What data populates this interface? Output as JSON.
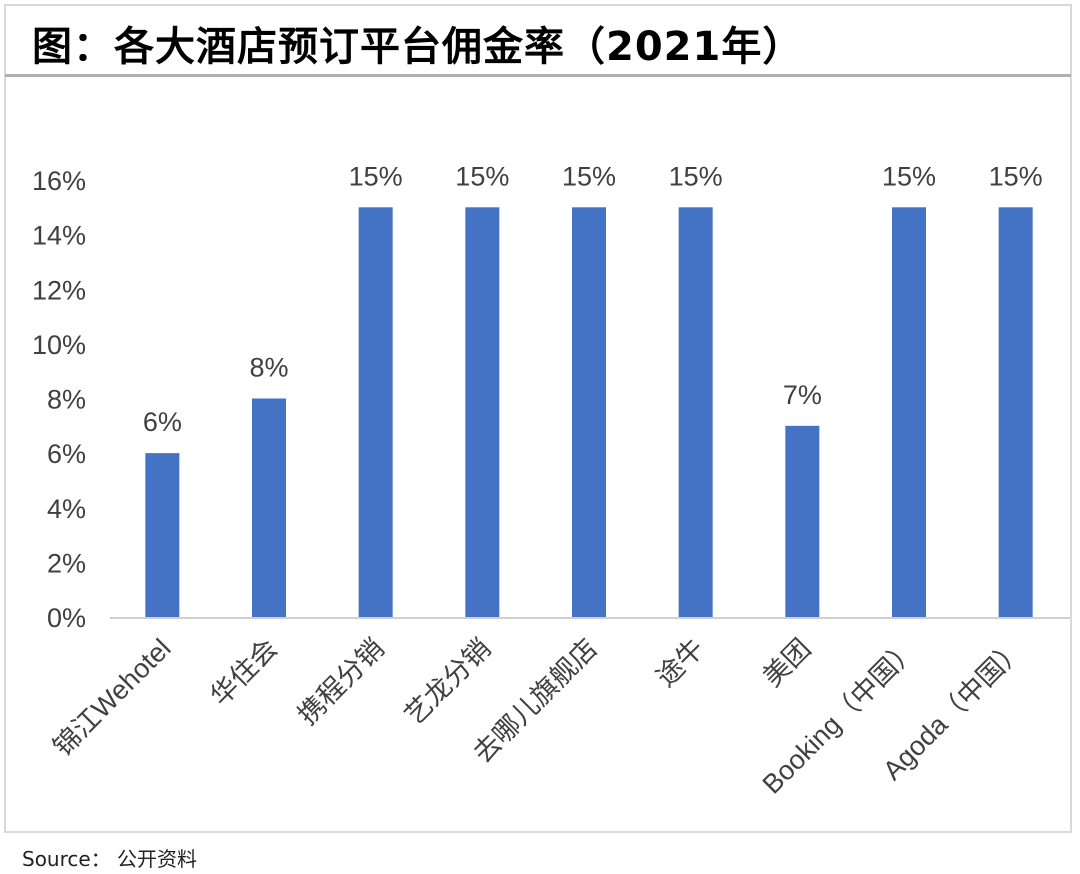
{
  "chart_data": {
    "type": "bar",
    "title": "图：各大酒店预订平台佣金率（2021年）",
    "categories": [
      "锦江Wehotel",
      "华住会",
      "携程分销",
      "艺龙分销",
      "去哪儿旗舰店",
      "途牛",
      "美团",
      "Booking（中国）",
      "Agoda（中国）"
    ],
    "values": [
      6,
      8,
      15,
      15,
      15,
      15,
      7,
      15,
      15
    ],
    "data_labels": [
      "6%",
      "8%",
      "15%",
      "15%",
      "15%",
      "15%",
      "7%",
      "15%",
      "15%"
    ],
    "y_ticks": [
      "0%",
      "2%",
      "4%",
      "6%",
      "8%",
      "10%",
      "12%",
      "14%",
      "16%"
    ],
    "ylim": [
      0,
      16
    ],
    "xlabel": "",
    "ylabel": "",
    "grid": false,
    "bar_color": "#4472c4"
  },
  "source": "Source：  公开资料"
}
